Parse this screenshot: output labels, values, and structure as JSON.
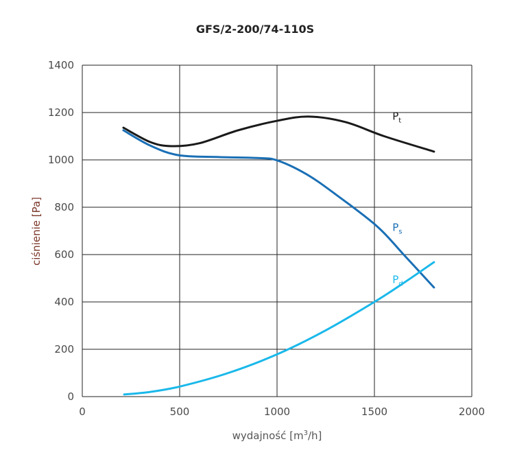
{
  "chart_data": {
    "type": "line",
    "title": "GFS/2-200/74-110S",
    "xlabel_main": "wydajność [m",
    "xlabel_sup": "3",
    "xlabel_tail": "/h]",
    "ylabel": "ciśnienie [Pa]",
    "xlim": [
      0,
      2000
    ],
    "ylim": [
      0,
      1400
    ],
    "xticks": [
      0,
      500,
      1000,
      1500,
      2000
    ],
    "yticks": [
      0,
      200,
      400,
      600,
      800,
      1000,
      1200,
      1400
    ],
    "grid": true,
    "series": [
      {
        "name": "Pt",
        "label_main": "P",
        "label_sub": "t",
        "color": "#1a1a1a",
        "x": [
          211,
          350,
          458,
          600,
          800,
          1000,
          1162,
          1350,
          1550,
          1806
        ],
        "y": [
          1136,
          1075,
          1058,
          1070,
          1125,
          1165,
          1183,
          1160,
          1100,
          1035
        ],
        "label_at": [
          1550,
          1170
        ]
      },
      {
        "name": "Ps",
        "label_main": "P",
        "label_sub": "s",
        "color": "#1a6fb5",
        "x": [
          211,
          350,
          493,
          700,
          900,
          1000,
          1150,
          1300,
          1514,
          1650,
          1806
        ],
        "y": [
          1125,
          1060,
          1020,
          1012,
          1008,
          998,
          940,
          855,
          719,
          600,
          461
        ],
        "label_at": [
          1550,
          700
        ]
      },
      {
        "name": "Pd",
        "label_main": "P",
        "label_sub": "d",
        "color": "#1ab8ea",
        "x": [
          215,
          350,
          503,
          750,
          1004,
          1250,
          1500,
          1650,
          1806
        ],
        "y": [
          9,
          20,
          43,
          100,
          180,
          280,
          400,
          480,
          568
        ],
        "label_at": [
          1550,
          480
        ]
      }
    ]
  }
}
